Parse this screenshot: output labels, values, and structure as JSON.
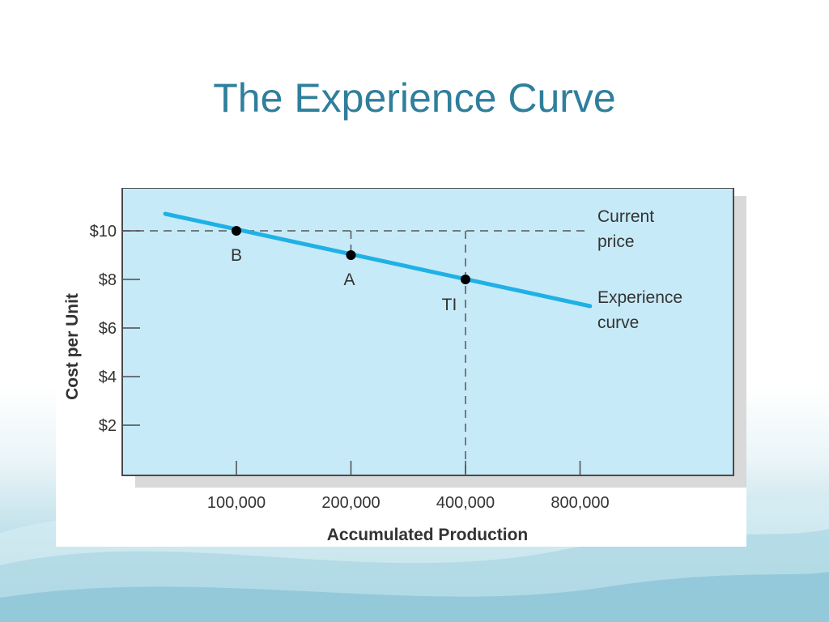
{
  "slide": {
    "title": "The Experience Curve"
  },
  "chart_data": {
    "type": "line",
    "xlabel": "Accumulated Production",
    "ylabel": "Cost per Unit",
    "x_scale": "log2",
    "x_ticks": [
      100000,
      200000,
      400000,
      800000
    ],
    "x_tick_labels": [
      "100,000",
      "200,000",
      "400,000",
      "800,000"
    ],
    "y_ticks": [
      2,
      4,
      6,
      8,
      10
    ],
    "y_tick_labels": [
      "$2",
      "$4",
      "$6",
      "$8",
      "$10"
    ],
    "ylim": [
      0,
      12
    ],
    "grid": false,
    "series": [
      {
        "name": "Experience curve",
        "label_lines": [
          "Experience",
          "curve"
        ],
        "color": "#1fb1e6",
        "x": [
          65000,
          850000
        ],
        "y": [
          10.7,
          6.9
        ]
      }
    ],
    "reference_line": {
      "label_lines": [
        "Current",
        "price"
      ],
      "y": 10,
      "color": "#555555"
    },
    "points": [
      {
        "label": "B",
        "x": 100000,
        "y": 10
      },
      {
        "label": "A",
        "x": 200000,
        "y": 9
      },
      {
        "label": "TI",
        "x": 400000,
        "y": 8
      }
    ],
    "colors": {
      "plot_bg": "#c7eaf8",
      "axis": "#4a4a4a",
      "title": "#2f7f9c"
    }
  }
}
